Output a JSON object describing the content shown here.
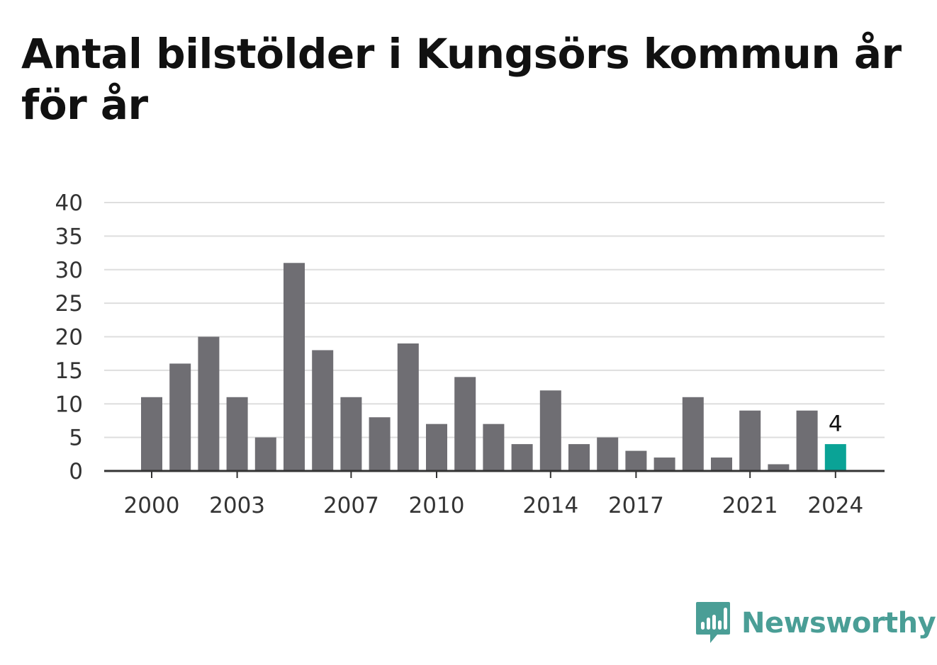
{
  "title": "Antal bilstölder i Kungsörs kommun år för år",
  "brand": {
    "name": "Newsworthy",
    "icon": "newsworthy-logo-icon",
    "color": "#4a9e96"
  },
  "chart_data": {
    "type": "bar",
    "title": "Antal bilstölder i Kungsörs kommun år för år",
    "xlabel": "",
    "ylabel": "",
    "categories": [
      2000,
      2001,
      2002,
      2003,
      2004,
      2005,
      2006,
      2007,
      2008,
      2009,
      2010,
      2011,
      2012,
      2013,
      2014,
      2015,
      2016,
      2017,
      2018,
      2019,
      2020,
      2021,
      2022,
      2023,
      2024
    ],
    "values": [
      11,
      16,
      20,
      11,
      5,
      31,
      18,
      11,
      8,
      19,
      7,
      14,
      7,
      4,
      12,
      4,
      5,
      3,
      2,
      11,
      2,
      9,
      1,
      9,
      4
    ],
    "x_tick_labels": [
      "2000",
      "2003",
      "2007",
      "2010",
      "2014",
      "2017",
      "2021",
      "2024"
    ],
    "y_ticks": [
      0,
      5,
      10,
      15,
      20,
      25,
      30,
      35,
      40
    ],
    "ylim": [
      0,
      40
    ],
    "grid": true,
    "legend": "none",
    "bar_color": "#6f6e73",
    "highlight_color": "#0aa396",
    "highlight_category": 2024,
    "highlight_label": "4"
  }
}
